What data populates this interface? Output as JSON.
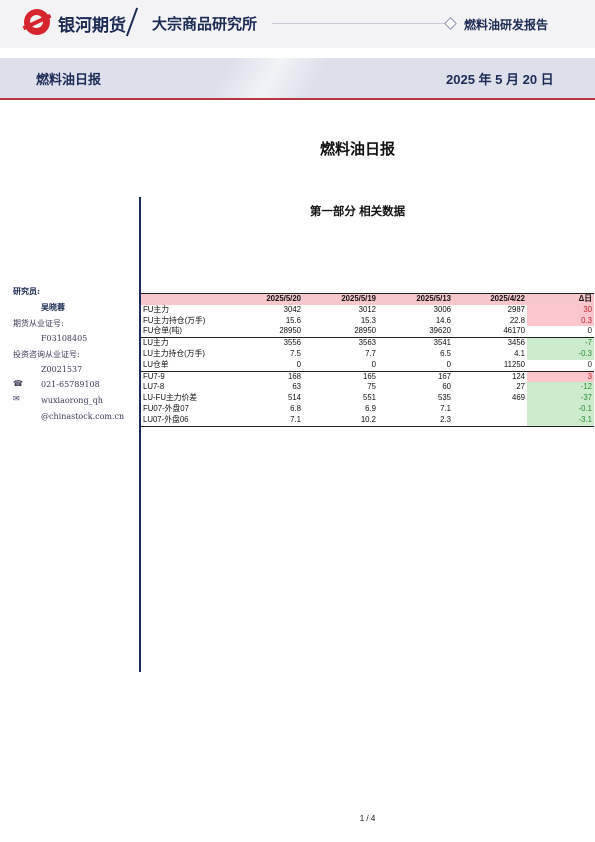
{
  "header": {
    "brand": "银河期货",
    "institute": "大宗商品研究所",
    "report_type": "燃料油研发报告"
  },
  "banner": {
    "title": "燃料油日报",
    "date": "2025 年 5 月 20 日"
  },
  "main_title": "燃料油日报",
  "section_title": "第一部分 相关数据",
  "sidebar": {
    "label_researcher": "研究员:",
    "researcher_name": "吴晓蓉",
    "label_license": "期货从业证号:",
    "license_no": "F03108405",
    "label_advisory": "投资咨询从业证号:",
    "advisory_no": "Z0021537",
    "phone_icon": "☎",
    "phone": "021-65789108",
    "mail_icon": "✉",
    "email_user": "wuxiaorong_qh",
    "email_domain": "@chinastock.com.cn"
  },
  "table": {
    "headers": [
      "",
      "2025/5/20",
      "2025/5/19",
      "2025/5/13",
      "2025/4/22",
      "Δ日"
    ],
    "rows": [
      {
        "label": "FU主力",
        "v": [
          "3042",
          "3012",
          "3006",
          "2987"
        ],
        "delta": "30",
        "trend": "up"
      },
      {
        "label": "FU主力持仓(万手)",
        "v": [
          "15.6",
          "15.3",
          "14.6",
          "22.8"
        ],
        "delta": "0.3",
        "trend": "up"
      },
      {
        "label": "FU仓单(吨)",
        "v": [
          "28950",
          "28950",
          "39620",
          "46170"
        ],
        "delta": "0",
        "trend": "flat"
      },
      {
        "label": "LU主力",
        "v": [
          "3556",
          "3563",
          "3541",
          "3456"
        ],
        "delta": "-7",
        "trend": "down"
      },
      {
        "label": "LU主力持仓(万手)",
        "v": [
          "7.5",
          "7.7",
          "6.5",
          "4.1"
        ],
        "delta": "-0.3",
        "trend": "down"
      },
      {
        "label": "LU仓单",
        "v": [
          "0",
          "0",
          "0",
          "11250"
        ],
        "delta": "0",
        "trend": "flat"
      },
      {
        "label": "FU7-9",
        "v": [
          "168",
          "165",
          "167",
          "124"
        ],
        "delta": "3",
        "trend": "up"
      },
      {
        "label": "LU7-8",
        "v": [
          "63",
          "75",
          "60",
          "27"
        ],
        "delta": "-12",
        "trend": "down"
      },
      {
        "label": "LU-FU主力价差",
        "v": [
          "514",
          "551",
          "535",
          "469"
        ],
        "delta": "-37",
        "trend": "down"
      },
      {
        "label": "FU07-外盘07",
        "v": [
          "6.8",
          "6.9",
          "7.1",
          ""
        ],
        "delta": "-0.1",
        "trend": "down"
      },
      {
        "label": "LU07-外盘06",
        "v": [
          "7.1",
          "10.2",
          "2.3",
          ""
        ],
        "delta": "-3.1",
        "trend": "down"
      }
    ]
  },
  "colors": {
    "navy": "#1b2b55",
    "up_bg": "#fbc6cc",
    "down_bg": "#cdeccd",
    "brand_red": "#d6252c"
  },
  "footer": {
    "page": "1 / 4"
  }
}
